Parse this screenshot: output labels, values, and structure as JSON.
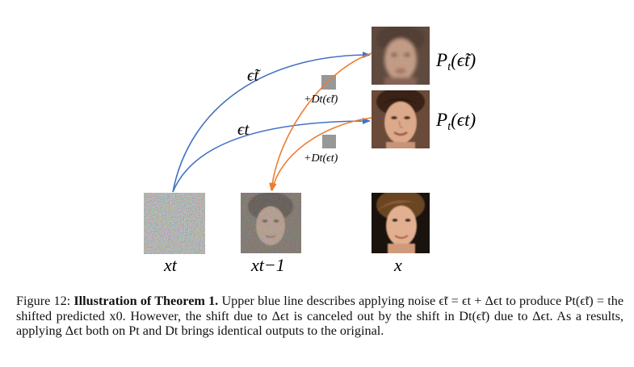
{
  "figure": {
    "images": {
      "pred_noisy": "P_t(ẽ_t) — blurry face (shifted predicted x0)",
      "pred_clean": "P_t(ε_t) — face",
      "xt": "x_t — pure noise",
      "xt1": "x_{t-1} — noisy face",
      "x": "x — original face"
    },
    "labels": {
      "eps_tilde": "ϵ̃t",
      "eps": "ϵt",
      "P_tilde_pre": "P",
      "P_tilde_sub": "t",
      "P_tilde_arg": "(ϵ̃t)",
      "P_pre": "P",
      "P_sub": "t",
      "P_arg": "(ϵt)",
      "D_tilde": "+Dt(ϵ̃t)",
      "D": "+Dt(ϵt)",
      "xt": "xt",
      "xt1": "xt−1",
      "x": "x"
    },
    "colors": {
      "blue": "#4472C4",
      "orange": "#ED7D31"
    }
  },
  "caption": {
    "prefix": "Figure 12:",
    "title": "Illustration of Theorem 1.",
    "text": "Upper blue line describes applying noise ϵ̃t = ϵt + Δϵt to produce Pt(ϵ̃t) = the shifted predicted x0. However, the shift due to Δϵt is canceled out by the shift in Dt(ϵ̃t) due to Δϵt. As a results, applying Δϵt both on Pt and Dt brings identical outputs to the original."
  }
}
